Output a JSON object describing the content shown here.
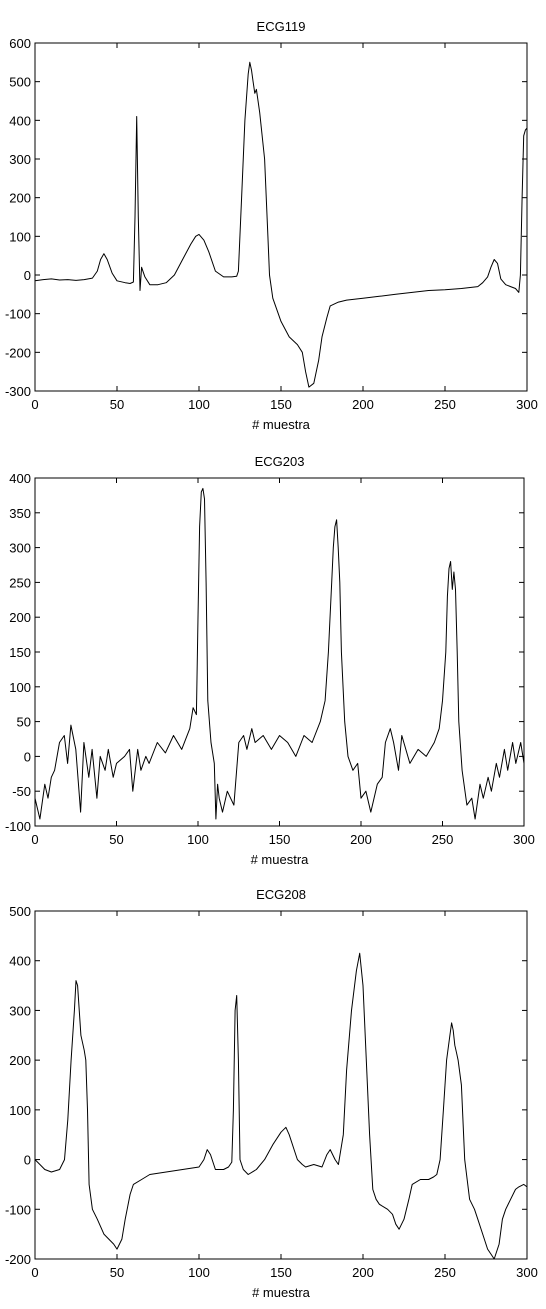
{
  "chart_data": [
    {
      "type": "line",
      "title": "ECG119",
      "xlabel": "# muestra",
      "ylabel": "",
      "xlim": [
        0,
        300
      ],
      "ylim": [
        -300,
        600
      ],
      "xticks": [
        0,
        50,
        100,
        150,
        200,
        250,
        300
      ],
      "yticks": [
        -300,
        -200,
        -100,
        0,
        100,
        200,
        300,
        400,
        500,
        600
      ],
      "grid": false,
      "line_color": "#000000",
      "series": [
        {
          "x": [
            0,
            5,
            10,
            15,
            20,
            25,
            30,
            35,
            38,
            40,
            42,
            44,
            47,
            50,
            55,
            58,
            60,
            61,
            62,
            63,
            64,
            65,
            67,
            70,
            75,
            80,
            85,
            90,
            95,
            98,
            100,
            103,
            106,
            110,
            115,
            120,
            123,
            124,
            126,
            128,
            130,
            131,
            132,
            133,
            134,
            135,
            137,
            140,
            142,
            143,
            145,
            150,
            155,
            160,
            163,
            165,
            167,
            170,
            173,
            175,
            178,
            180,
            185,
            190,
            200,
            210,
            220,
            230,
            240,
            250,
            260,
            270,
            273,
            276,
            278,
            280,
            282,
            284,
            287,
            290,
            293,
            295,
            296,
            297,
            298,
            299,
            300
          ],
          "y": [
            -15,
            -12,
            -10,
            -13,
            -12,
            -14,
            -12,
            -8,
            10,
            40,
            55,
            40,
            5,
            -15,
            -20,
            -22,
            -18,
            150,
            410,
            150,
            -40,
            20,
            -5,
            -25,
            -25,
            -20,
            0,
            40,
            80,
            100,
            105,
            90,
            60,
            10,
            -5,
            -5,
            -3,
            10,
            200,
            400,
            520,
            550,
            530,
            500,
            470,
            480,
            420,
            300,
            100,
            0,
            -60,
            -120,
            -160,
            -180,
            -200,
            -250,
            -290,
            -280,
            -220,
            -160,
            -110,
            -80,
            -70,
            -65,
            -60,
            -55,
            -50,
            -45,
            -40,
            -38,
            -35,
            -30,
            -20,
            -5,
            20,
            40,
            30,
            -10,
            -25,
            -30,
            -35,
            -45,
            0,
            200,
            360,
            375,
            380
          ]
        }
      ]
    },
    {
      "type": "line",
      "title": "ECG203",
      "xlabel": "# muestra",
      "ylabel": "",
      "xlim": [
        0,
        300
      ],
      "ylim": [
        -100,
        400
      ],
      "xticks": [
        0,
        50,
        100,
        150,
        200,
        250,
        300
      ],
      "yticks": [
        -100,
        -50,
        0,
        50,
        100,
        150,
        200,
        250,
        300,
        350,
        400
      ],
      "grid": false,
      "line_color": "#000000",
      "series": [
        {
          "x": [
            0,
            3,
            6,
            8,
            10,
            12,
            15,
            18,
            20,
            22,
            25,
            28,
            30,
            33,
            35,
            38,
            40,
            43,
            45,
            48,
            50,
            55,
            58,
            60,
            63,
            65,
            68,
            70,
            75,
            80,
            85,
            90,
            95,
            97,
            99,
            100,
            101,
            102,
            103,
            104,
            105,
            106,
            108,
            110,
            111,
            112,
            113,
            115,
            118,
            120,
            122,
            125,
            128,
            130,
            133,
            135,
            140,
            145,
            150,
            155,
            160,
            165,
            170,
            175,
            178,
            180,
            182,
            183,
            184,
            185,
            186,
            187,
            188,
            190,
            192,
            195,
            198,
            200,
            203,
            206,
            210,
            213,
            215,
            218,
            220,
            223,
            225,
            230,
            235,
            240,
            245,
            248,
            250,
            252,
            253,
            254,
            255,
            256,
            257,
            258,
            259,
            260,
            262,
            265,
            268,
            270,
            273,
            275,
            278,
            280,
            283,
            285,
            288,
            290,
            293,
            295,
            298,
            300
          ],
          "y": [
            -60,
            -90,
            -40,
            -60,
            -30,
            -20,
            20,
            30,
            -10,
            45,
            10,
            -80,
            20,
            -30,
            10,
            -60,
            0,
            -20,
            10,
            -30,
            -10,
            0,
            10,
            -50,
            10,
            -20,
            0,
            -10,
            20,
            5,
            30,
            10,
            40,
            70,
            60,
            200,
            330,
            380,
            385,
            370,
            250,
            80,
            20,
            -10,
            -90,
            -40,
            -60,
            -80,
            -50,
            -60,
            -70,
            20,
            30,
            10,
            40,
            20,
            30,
            10,
            30,
            20,
            0,
            30,
            20,
            50,
            80,
            150,
            250,
            300,
            330,
            340,
            300,
            250,
            150,
            50,
            0,
            -20,
            -10,
            -60,
            -50,
            -80,
            -40,
            -30,
            20,
            40,
            20,
            -20,
            30,
            -10,
            10,
            0,
            20,
            40,
            80,
            150,
            230,
            270,
            280,
            240,
            265,
            240,
            150,
            50,
            -20,
            -70,
            -60,
            -90,
            -40,
            -60,
            -30,
            -50,
            -10,
            -30,
            10,
            -20,
            20,
            -10,
            20,
            -10
          ]
        }
      ]
    },
    {
      "type": "line",
      "title": "ECG208",
      "xlabel": "# muestra",
      "ylabel": "",
      "xlim": [
        0,
        300
      ],
      "ylim": [
        -200,
        500
      ],
      "xticks": [
        0,
        50,
        100,
        150,
        200,
        250,
        300
      ],
      "yticks": [
        -200,
        -100,
        0,
        100,
        200,
        300,
        400,
        500
      ],
      "grid": false,
      "line_color": "#000000",
      "series": [
        {
          "x": [
            0,
            3,
            6,
            10,
            15,
            18,
            20,
            22,
            24,
            25,
            26,
            28,
            30,
            31,
            32,
            33,
            35,
            38,
            42,
            45,
            48,
            50,
            53,
            55,
            58,
            60,
            65,
            70,
            80,
            90,
            100,
            103,
            105,
            107,
            110,
            115,
            118,
            120,
            121,
            122,
            123,
            124,
            125,
            127,
            130,
            135,
            140,
            145,
            150,
            153,
            155,
            158,
            160,
            163,
            165,
            170,
            175,
            178,
            180,
            183,
            185,
            188,
            190,
            193,
            196,
            198,
            200,
            202,
            204,
            206,
            208,
            210,
            215,
            218,
            220,
            222,
            225,
            228,
            230,
            235,
            240,
            243,
            245,
            247,
            249,
            251,
            253,
            254,
            255,
            256,
            257,
            258,
            260,
            262,
            265,
            268,
            270,
            273,
            276,
            278,
            280,
            283,
            285,
            287,
            290,
            293,
            295,
            298,
            300
          ],
          "y": [
            0,
            -10,
            -20,
            -25,
            -20,
            0,
            80,
            200,
            300,
            360,
            350,
            250,
            220,
            200,
            100,
            -50,
            -100,
            -120,
            -150,
            -160,
            -170,
            -180,
            -160,
            -120,
            -70,
            -50,
            -40,
            -30,
            -25,
            -20,
            -15,
            0,
            20,
            10,
            -20,
            -20,
            -15,
            -5,
            100,
            300,
            330,
            200,
            0,
            -20,
            -30,
            -20,
            0,
            30,
            55,
            65,
            50,
            20,
            0,
            -10,
            -15,
            -10,
            -15,
            10,
            20,
            0,
            -10,
            50,
            180,
            300,
            380,
            415,
            350,
            200,
            50,
            -60,
            -80,
            -90,
            -100,
            -110,
            -130,
            -140,
            -120,
            -80,
            -50,
            -40,
            -40,
            -35,
            -30,
            0,
            100,
            200,
            250,
            275,
            260,
            230,
            215,
            200,
            150,
            0,
            -80,
            -100,
            -120,
            -150,
            -180,
            -190,
            -200,
            -170,
            -120,
            -100,
            -80,
            -60,
            -55,
            -50,
            -55
          ]
        }
      ]
    }
  ]
}
